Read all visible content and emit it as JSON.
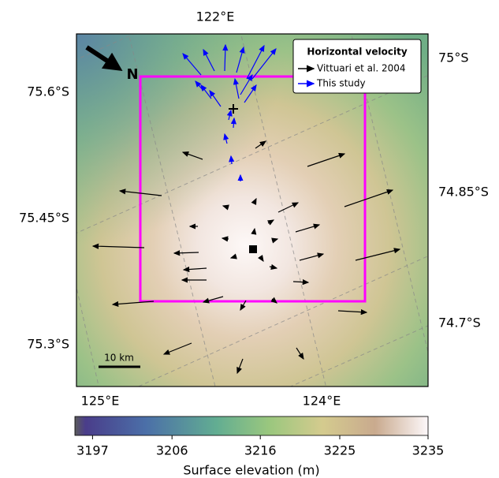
{
  "map": {
    "lon_labels_top": [
      "122°E"
    ],
    "lon_labels_bottom": [
      "125°E",
      "124°E"
    ],
    "lat_labels_left": [
      "75.6°S",
      "75.45°S",
      "75.3°S"
    ],
    "lat_labels_right": [
      "75°S",
      "74.85°S",
      "74.7°S"
    ],
    "north_label": "N",
    "scale_bar": "10 km",
    "legend": {
      "title": "Horizontal velocity",
      "entries": [
        {
          "label": "Vittuari et al. 2004",
          "color": "#000000"
        },
        {
          "label": "This study",
          "color": "#0000ff"
        }
      ]
    }
  },
  "colorbar": {
    "label": "Surface elevation (m)",
    "lim": [
      3195,
      3235
    ],
    "ticks": [
      3197,
      3206,
      3216,
      3225,
      3235
    ]
  }
}
